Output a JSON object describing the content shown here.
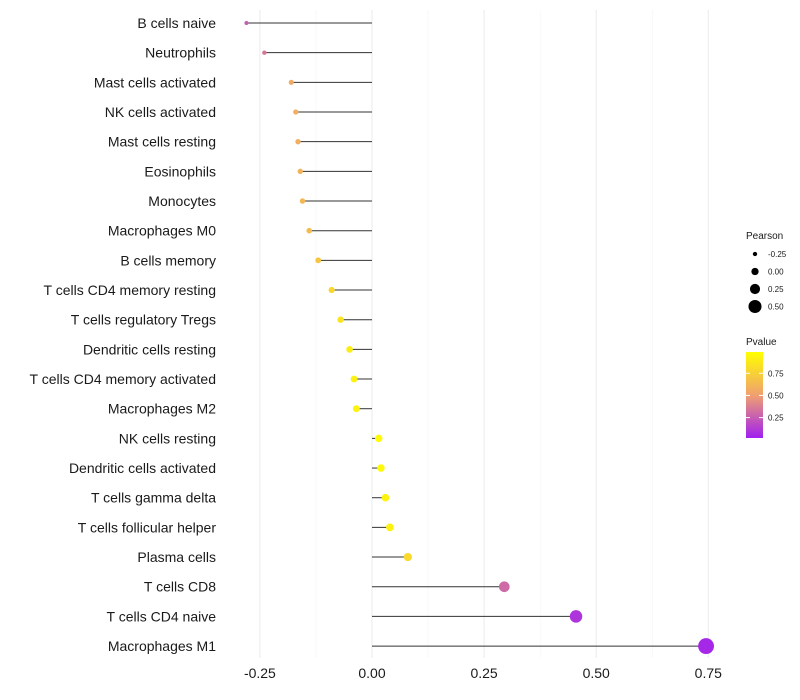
{
  "chart_data": {
    "type": "lollipop",
    "categories": [
      "B cells naive",
      "Neutrophils",
      "Mast cells activated",
      "NK cells activated",
      "Mast cells resting",
      "Eosinophils",
      "Monocytes",
      "Macrophages M0",
      "B cells memory",
      "T cells CD4 memory resting",
      "T cells regulatory  Tregs",
      "Dendritic cells resting",
      "T cells CD4 memory activated",
      "Macrophages M2",
      "NK cells resting",
      "Dendritic cells activated",
      "T cells gamma delta",
      "T cells follicular helper",
      "Plasma cells",
      "T cells CD8",
      "T cells CD4 naive",
      "Macrophages M1"
    ],
    "values": [
      -0.28,
      -0.24,
      -0.18,
      -0.17,
      -0.165,
      -0.16,
      -0.155,
      -0.14,
      -0.12,
      -0.09,
      -0.07,
      -0.05,
      -0.04,
      -0.035,
      0.015,
      0.02,
      0.03,
      0.04,
      0.08,
      0.295,
      0.455,
      0.745
    ],
    "pvalues": [
      0.25,
      0.35,
      0.55,
      0.58,
      0.58,
      0.6,
      0.62,
      0.65,
      0.7,
      0.78,
      0.85,
      0.9,
      0.92,
      0.93,
      0.97,
      0.96,
      0.93,
      0.92,
      0.8,
      0.3,
      0.1,
      0.05
    ],
    "xlim": [
      -0.28,
      0.75
    ],
    "xticks": [
      "-0.25",
      "0.00",
      "0.25",
      "0.50",
      "0.75"
    ],
    "xtick_values": [
      -0.25,
      0,
      0.25,
      0.5,
      0.75
    ],
    "legend_size": {
      "title": "Pearson",
      "labels": [
        "-0.25",
        "0.00",
        "0.25",
        "0.50"
      ],
      "values": [
        -0.25,
        0,
        0.25,
        0.5
      ]
    },
    "legend_color": {
      "title": "Pvalue",
      "labels": [
        "0.75",
        "0.50",
        "0.25"
      ],
      "values": [
        0.75,
        0.5,
        0.25
      ],
      "range": [
        0.02,
        0.99
      ],
      "low_color": "#a020f0",
      "mid_color": "#f0a070",
      "high_color": "#ffff00"
    },
    "legend_position": "right"
  }
}
